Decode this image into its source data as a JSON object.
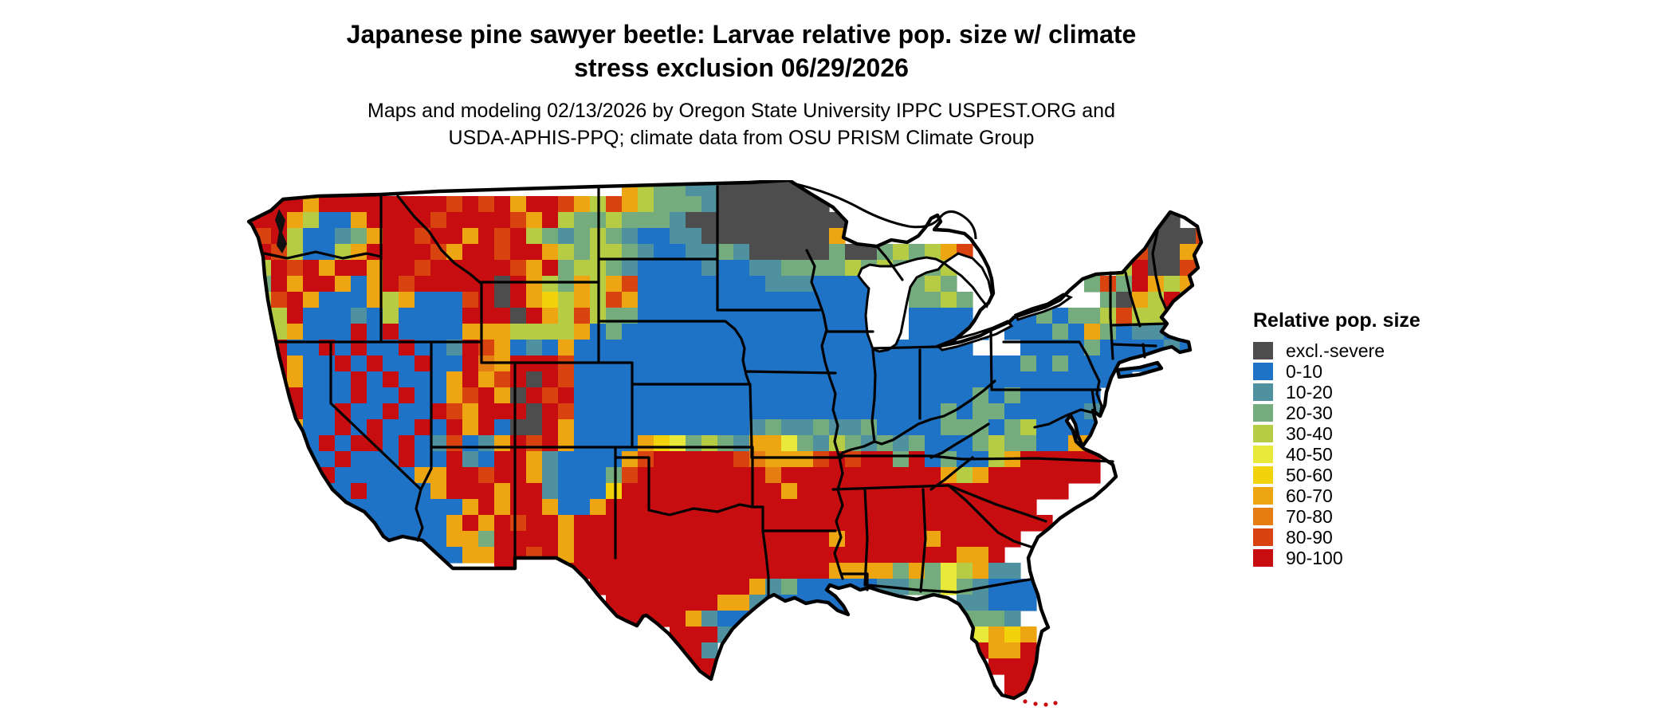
{
  "header": {
    "title_line1": "Japanese pine sawyer beetle: Larvae relative pop. size w/ climate",
    "title_line2": "stress exclusion 06/29/2026",
    "subtitle_line1": "Maps and modeling 02/13/2026 by Oregon State University IPPC USPEST.ORG and",
    "subtitle_line2": "USDA-APHIS-PPQ; climate data from OSU PRISM Climate Group"
  },
  "legend": {
    "title": "Relative pop. size",
    "items": [
      {
        "label": "excl.-severe",
        "code": "X",
        "color": "#4D4D4D"
      },
      {
        "label": "0-10",
        "code": "B",
        "color": "#1E73C6"
      },
      {
        "label": "10-20",
        "code": "T",
        "color": "#4F919E"
      },
      {
        "label": "20-30",
        "code": "G",
        "color": "#74AC7D"
      },
      {
        "label": "30-40",
        "code": "Y",
        "color": "#B6CC45"
      },
      {
        "label": "40-50",
        "code": "L",
        "color": "#E9E93A"
      },
      {
        "label": "50-60",
        "code": "D",
        "color": "#F2D30B"
      },
      {
        "label": "60-70",
        "code": "O",
        "color": "#EDA512"
      },
      {
        "label": "70-80",
        "code": "N",
        "color": "#E57D12"
      },
      {
        "label": "80-90",
        "code": "E",
        "color": "#D8430F"
      },
      {
        "label": "90-100",
        "code": "R",
        "color": "#C70D10"
      }
    ]
  },
  "map": {
    "region": "Continental United States",
    "type": "raster-choropleth",
    "cell_size": 20,
    "columns": 61,
    "rows": 33,
    "water_color": "#FFFFFF",
    "border_color": "#000000",
    "palette": {
      "X": "#4D4D4D",
      "B": "#1E73C6",
      "T": "#4F919E",
      "G": "#74AC7D",
      "Y": "#B6CC45",
      "L": "#E9E93A",
      "D": "#F2D30B",
      "O": "#EDA512",
      "N": "#E57D12",
      "E": "#D8430F",
      "R": "#C70D10"
    },
    "grid": [
      "........................OYGGTTXXXXXX.........................",
      "RRRRORRRRRRRRERERORREOYEOYGGGTXXXXXXX........................",
      "RRROYBBORRRRERRRREORYGGYGGGTXXXXXXXXXX...................XX..",
      "RERYBBTGORRERRORERYGTGYGTBBTTXXXXXXXXO..................NXXXE",
      "RREYBBYORRRREORRERROYGYYGTBBTTGTXXXXXGXXGYGYOE..........EXXOO",
      "RYRERORRORRERRRRREORGYYGTBBBBTBBTTGGGGYGYGYGY..........YRXXEO",
      "RGRORROBORERRRRRXROYGOYOEBBBBBBBBTTTBBBB..GYG........GEGROYOR",
      "RYEROBBBOYOBBBERXRODYOYEOBBBBBBBBBBBBBBB..GGYG........GXOYRGRR",
      "REYRBBBTBYBBBBRRRXROYEYGGBBBBBBBBBBBBBBB..BBBB..BBGBGGYEYYOR.",
      "RRYOBBBRBRBBBBOOOYYYYOBGBBBBBBBBBBBBBBBB..BBBBB.BBBGBOGBTTBT.",
      "RERBBRBRBBRBBTREOBTBOBBBBBBBBBBBBBBBBBBBBBBBBB...BBBBGBBBBTBT.",
      "RRROBBRBRBBRBBRNORRREBBBBBBBBBBBBBBBBBBBBBBBBBBBBGBGBBBBBBT..",
      "ERROBBBRBRBBBOROERXREBBBBBBBBBBBBBBBBBBBBBBBBBBBBBBBBBBB.....",
      "RORRBBBRBBRBBOEROXRERBBBBBBBBBBBBBBBBBBBBBBBBBGBGBBBBB......",
      "RRERBBRBBRBBREORRRXREBBBBBBBBBBBBBBBBBBBBBBBGBGGBBBBBT......",
      "REROBBRBRBBRBRORBXXROBBBBBBBBBBBTGTTGTTGBBBBGGGBGYBBBB......",
      "RRERBRBRRBRBTEBTOREROBBBBODLGYGTOOLGTYGTGTGBBBGYGGBBOO......",
      "RRRRBBRBBBRBBRTBRROTBBBBOERRRRRENOOOERERRGRBGBBYORRRRR......",
      "RRRRBRBBBBBOORRERROTBBBGERRRRRRRRNRRRRRRRRRROYORRRRRRR......",
      "RRRRRBBRBBBBORRRORRTBBBDRRRRRRRRRRORRRRRRRRRRRRRRRRR........",
      "RRRRRRBBBBBBBBORORROBBORRRRRRRRRRRRRRRRRRRRRRRRRRR..........",
      "RRRRRBBBBBBBBORORERRORRRRRRRRRRRRRRRRRRRRRRRRRRRRRR.........",
      "....RRRRBBBBBOOGRRRRORRRRRRRRRRRRRRRRORRRRRORRRRR...........",
      ".......RRBBBBBOORRERORRRRRRRRRRRRRRRRRRRRRRRROOR............",
      "................RRRRRRRRRRRRRRRRRRRRROOOOGOGLYOTT...........",
      "......................RRRRRRRRRROTGBBBBBTTGGLGTBBB..........",
      ".......................RRRRRRROOTBBBBB.......TTBBB..........",
      ".......................RRRRROTBB.............GGGT............",
      "...........................RRRT..............OLODO...........",
      "...........................RRT................ROOR...........",
      "............................RR.................RRR...........",
      "............................RR..................RRR..........",
      "................................................RRR.........."
    ]
  }
}
